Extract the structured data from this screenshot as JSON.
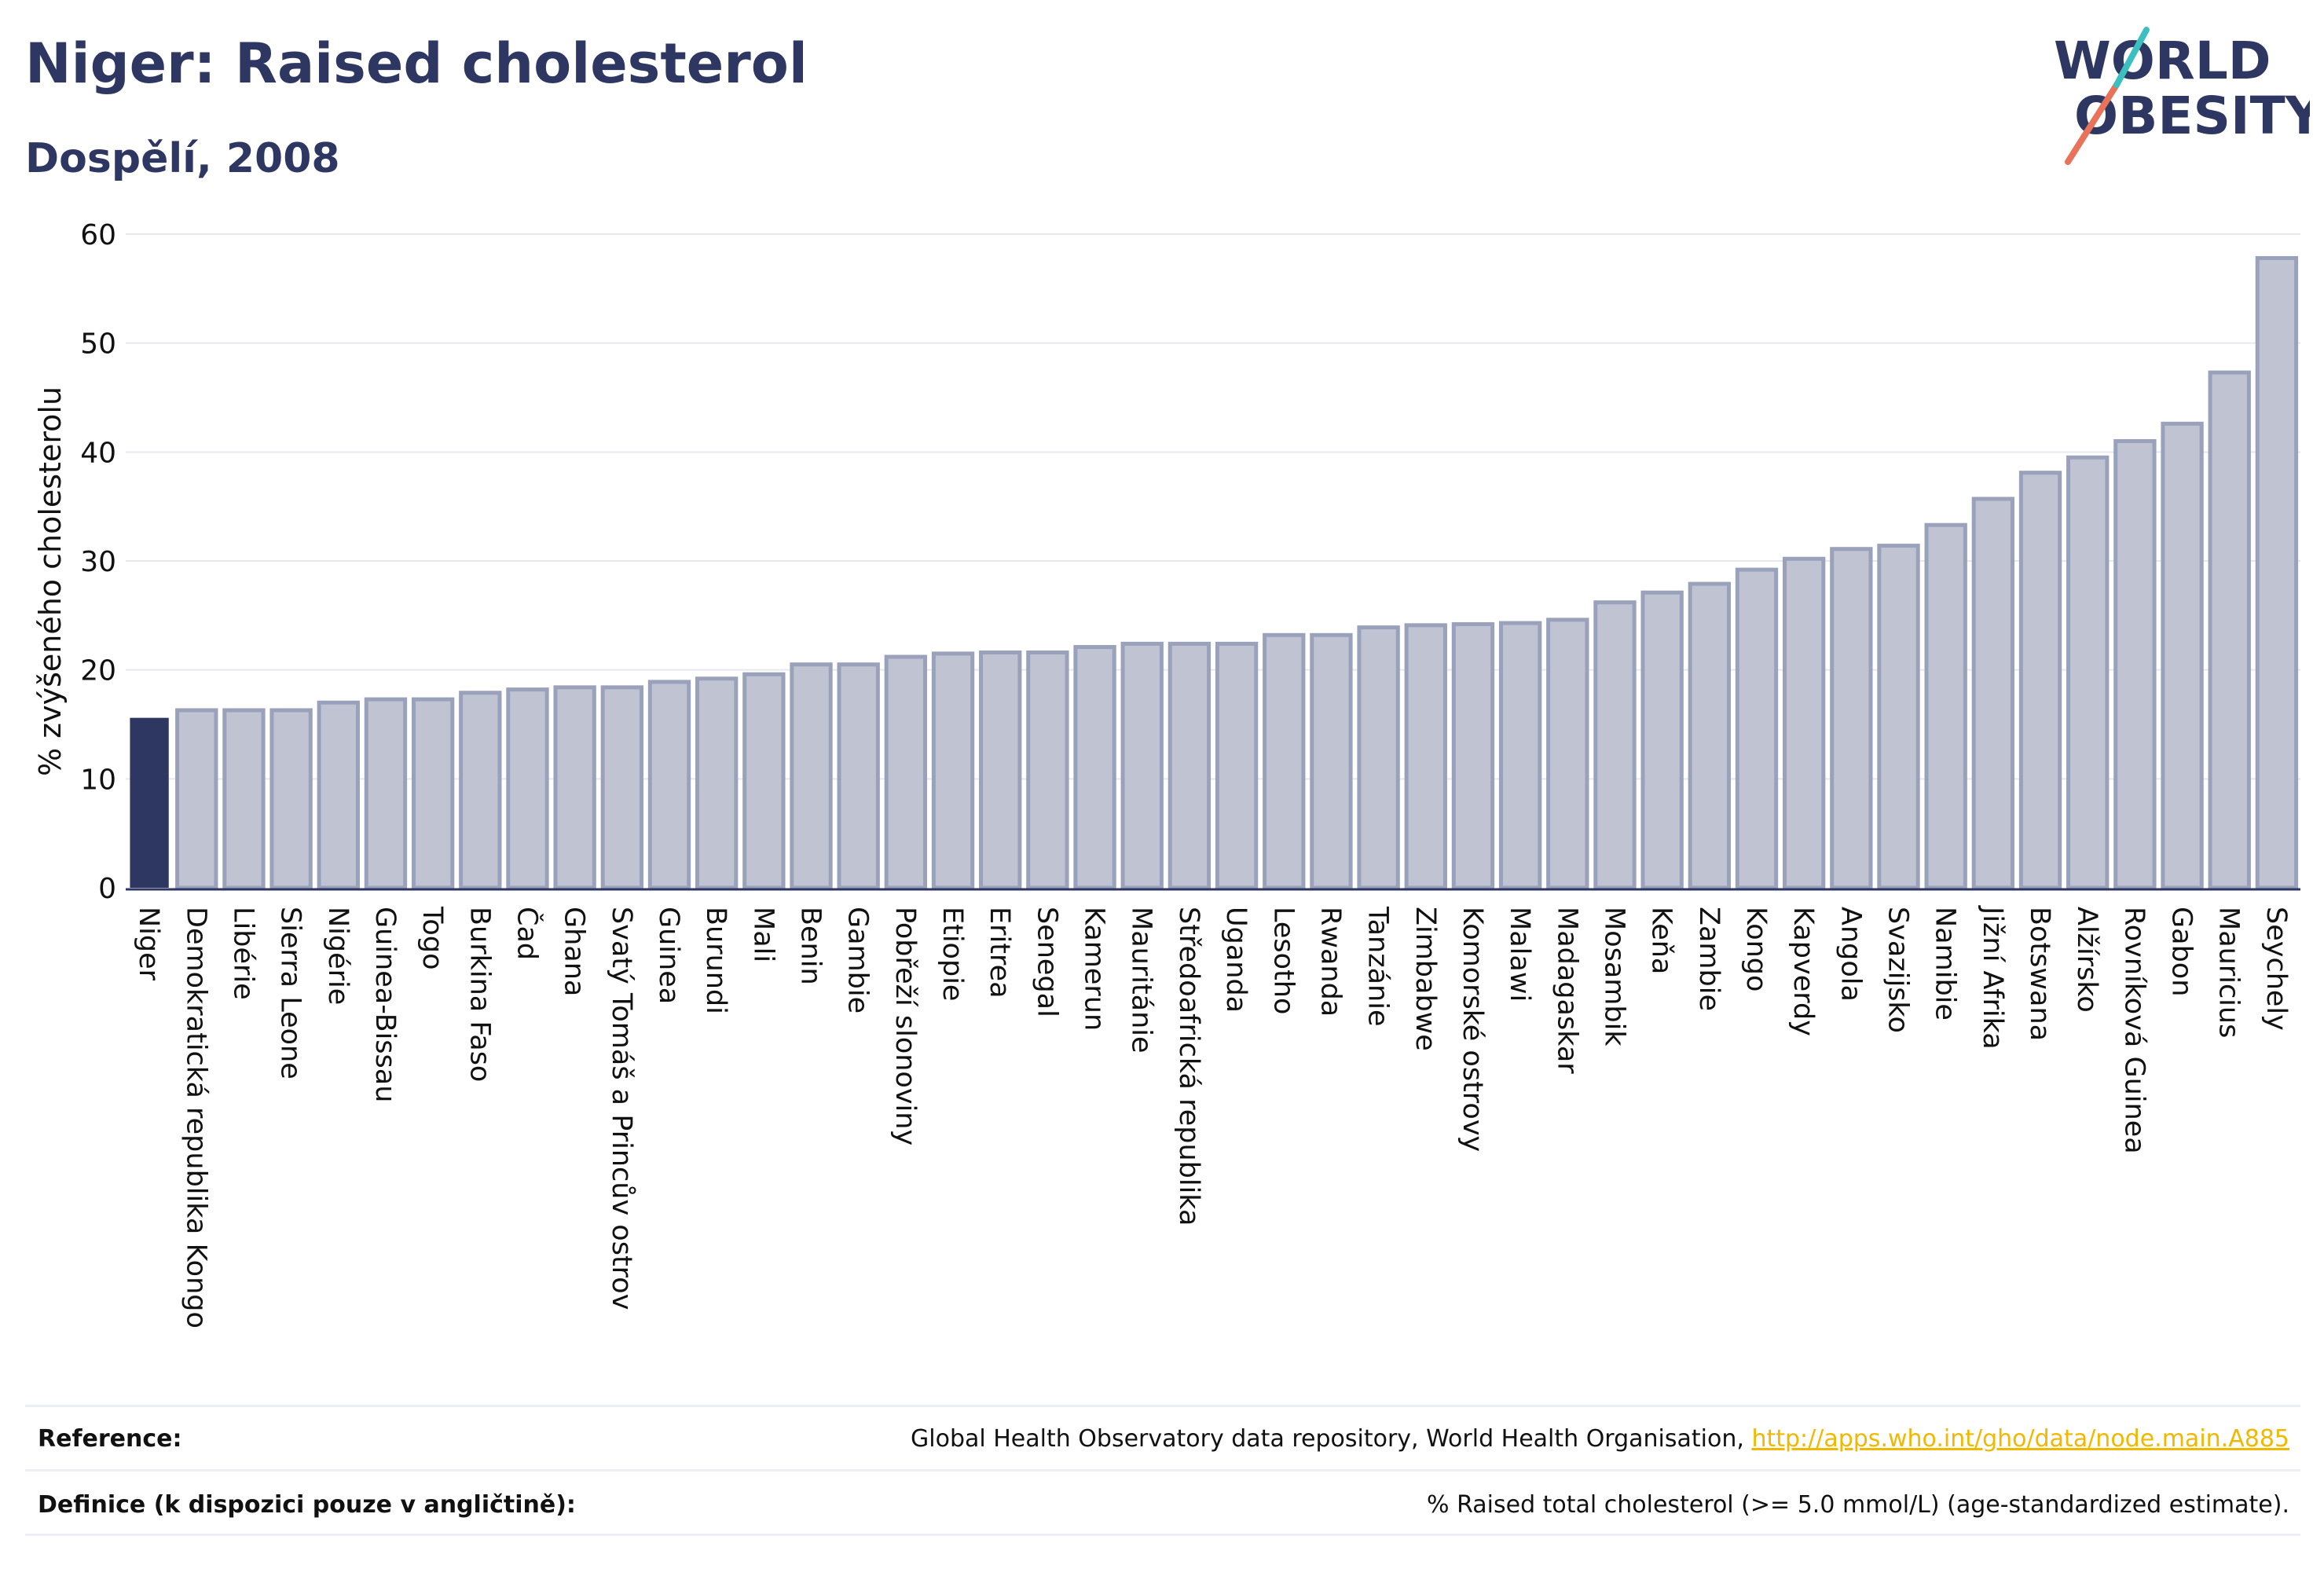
{
  "header": {
    "title": "Niger: Raised cholesterol",
    "subtitle": "Dospělí, 2008"
  },
  "logo": {
    "line1": "WORLD",
    "line2": "OBESITY",
    "slash_colors": [
      "#e8735a",
      "#3bbfbf"
    ]
  },
  "colors": {
    "highlight_bar": "#2e3762",
    "other_bar_fill": "#bfc3d2",
    "other_bar_stroke": "#9aa1bb",
    "axis": "#2e3762",
    "gridline": "#e6e8f0",
    "link": "#f0b800"
  },
  "chart_data": {
    "type": "bar",
    "ylabel": "% zvýšeného cholesterolu",
    "ylim": [
      0,
      60
    ],
    "yticks": [
      0,
      10,
      20,
      30,
      40,
      50,
      60
    ],
    "grid": true,
    "highlight": "Niger",
    "categories": [
      "Niger",
      "Demokratická republika Kongo",
      "Libérie",
      "Sierra Leone",
      "Nigérie",
      "Guinea-Bissau",
      "Togo",
      "Burkina Faso",
      "Čad",
      "Ghana",
      "Svatý Tomáš a Princův ostrov",
      "Guinea",
      "Burundi",
      "Mali",
      "Benin",
      "Gambie",
      "Pobřeží slonoviny",
      "Etiopie",
      "Eritrea",
      "Senegal",
      "Kamerun",
      "Mauritánie",
      "Středoafrická republika",
      "Uganda",
      "Lesotho",
      "Rwanda",
      "Tanzánie",
      "Zimbabwe",
      "Komorské ostrovy",
      "Malawi",
      "Madagaskar",
      "Mosambik",
      "Keňa",
      "Zambie",
      "Kongo",
      "Kapverdy",
      "Angola",
      "Svazijsko",
      "Namibie",
      "Jižní Afrika",
      "Botswana",
      "Alžírsko",
      "Rovníková Guinea",
      "Gabon",
      "Mauricius",
      "Seychely"
    ],
    "values": [
      15.6,
      16.3,
      16.3,
      16.3,
      17.0,
      17.3,
      17.3,
      17.9,
      18.2,
      18.4,
      18.4,
      18.9,
      19.2,
      19.6,
      20.5,
      20.5,
      21.2,
      21.5,
      21.6,
      21.6,
      22.1,
      22.4,
      22.4,
      22.4,
      23.2,
      23.2,
      23.9,
      24.1,
      24.2,
      24.3,
      24.6,
      26.2,
      27.1,
      27.9,
      29.2,
      30.2,
      31.1,
      31.4,
      33.3,
      35.7,
      38.1,
      39.5,
      41.0,
      42.6,
      47.3,
      57.8
    ]
  },
  "footer": {
    "reference_label": "Reference:",
    "reference_text": "Global Health Observatory data repository, World Health Organisation, ",
    "reference_link": "http://apps.who.int/gho/data/node.main.A885",
    "definition_label": "Definice (k dispozici pouze v angličtině):",
    "definition_text": "% Raised total cholesterol (>= 5.0 mmol/L) (age-standardized estimate)."
  }
}
